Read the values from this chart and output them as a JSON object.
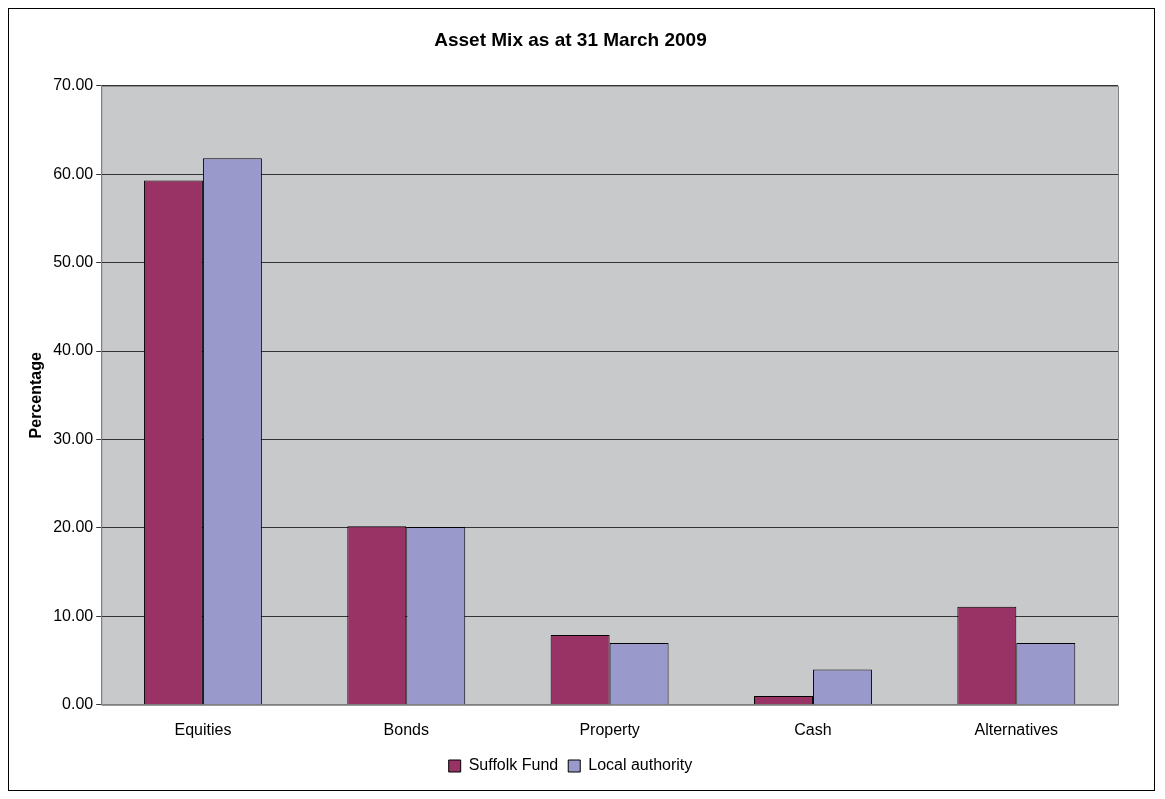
{
  "chart_data": {
    "type": "bar",
    "title": "Asset Mix as at 31 March 2009",
    "ylabel": "Percentage",
    "categories": [
      "Equities",
      "Bonds",
      "Property",
      "Cash",
      "Alternatives"
    ],
    "series": [
      {
        "name": "Suffolk Fund",
        "color": "#993366",
        "values": [
          59.3,
          20.2,
          7.9,
          1.0,
          11.1
        ]
      },
      {
        "name": "Local authority",
        "color": "#9999cc",
        "values": [
          61.8,
          20.1,
          7.0,
          4.0,
          7.0
        ]
      }
    ],
    "ylim": [
      0,
      70
    ],
    "yticks": [
      {
        "value": 0,
        "label": "0.00"
      },
      {
        "value": 10,
        "label": "10.00"
      },
      {
        "value": 20,
        "label": "20.00"
      },
      {
        "value": 30,
        "label": "30.00"
      },
      {
        "value": 40,
        "label": "40.00"
      },
      {
        "value": 50,
        "label": "50.00"
      },
      {
        "value": 60,
        "label": "60.00"
      },
      {
        "value": 70,
        "label": "70.00"
      }
    ],
    "grid": "y",
    "legend": "bottom"
  }
}
